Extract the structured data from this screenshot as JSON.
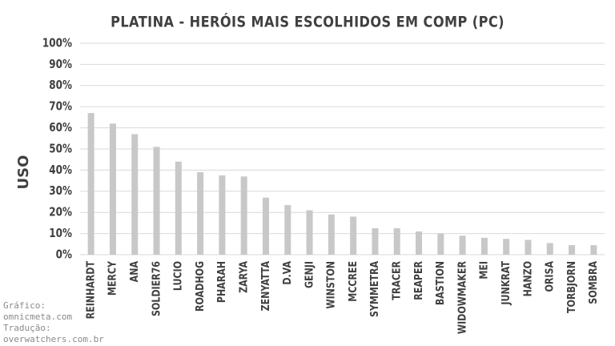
{
  "chart_data": {
    "type": "bar",
    "title": "PLATINA - HERÓIS MAIS ESCOLHIDOS EM COMP (PC)",
    "y_label": "USO",
    "categories": [
      "REINHARDT",
      "MERCY",
      "ANA",
      "SOLDIER76",
      "LUCIO",
      "ROADHOG",
      "PHARAH",
      "ZARYA",
      "ZENYATTA",
      "D.VA",
      "GENJI",
      "WINSTON",
      "MCCREE",
      "SYMMETRA",
      "TRACER",
      "REAPER",
      "BASTION",
      "WIDOWMAKER",
      "MEI",
      "JUNKRAT",
      "HANZO",
      "ORISA",
      "TORBJORN",
      "SOMBRA"
    ],
    "values": [
      67,
      62,
      57,
      51,
      44,
      39,
      37.5,
      37,
      27,
      23.5,
      21,
      19,
      18,
      12.5,
      12.5,
      11,
      10,
      9,
      8,
      7.5,
      7,
      5.5,
      4.5,
      4.5
    ],
    "color": "#c8c8c8",
    "ylim": [
      0,
      100
    ],
    "yticks": [
      {
        "value": 0,
        "label": "0%"
      },
      {
        "value": 10,
        "label": "10%"
      },
      {
        "value": 20,
        "label": "20%"
      },
      {
        "value": 30,
        "label": "30%"
      },
      {
        "value": 40,
        "label": "40%"
      },
      {
        "value": 50,
        "label": "50%"
      },
      {
        "value": 60,
        "label": "60%"
      },
      {
        "value": 70,
        "label": "70%"
      },
      {
        "value": 80,
        "label": "80%"
      },
      {
        "value": 90,
        "label": "90%"
      },
      {
        "value": 100,
        "label": "100%"
      }
    ],
    "grid": true,
    "credits": [
      "Gráfico:",
      "omnicmeta.com",
      "Tradução:",
      "overwatchers.com.br"
    ]
  }
}
